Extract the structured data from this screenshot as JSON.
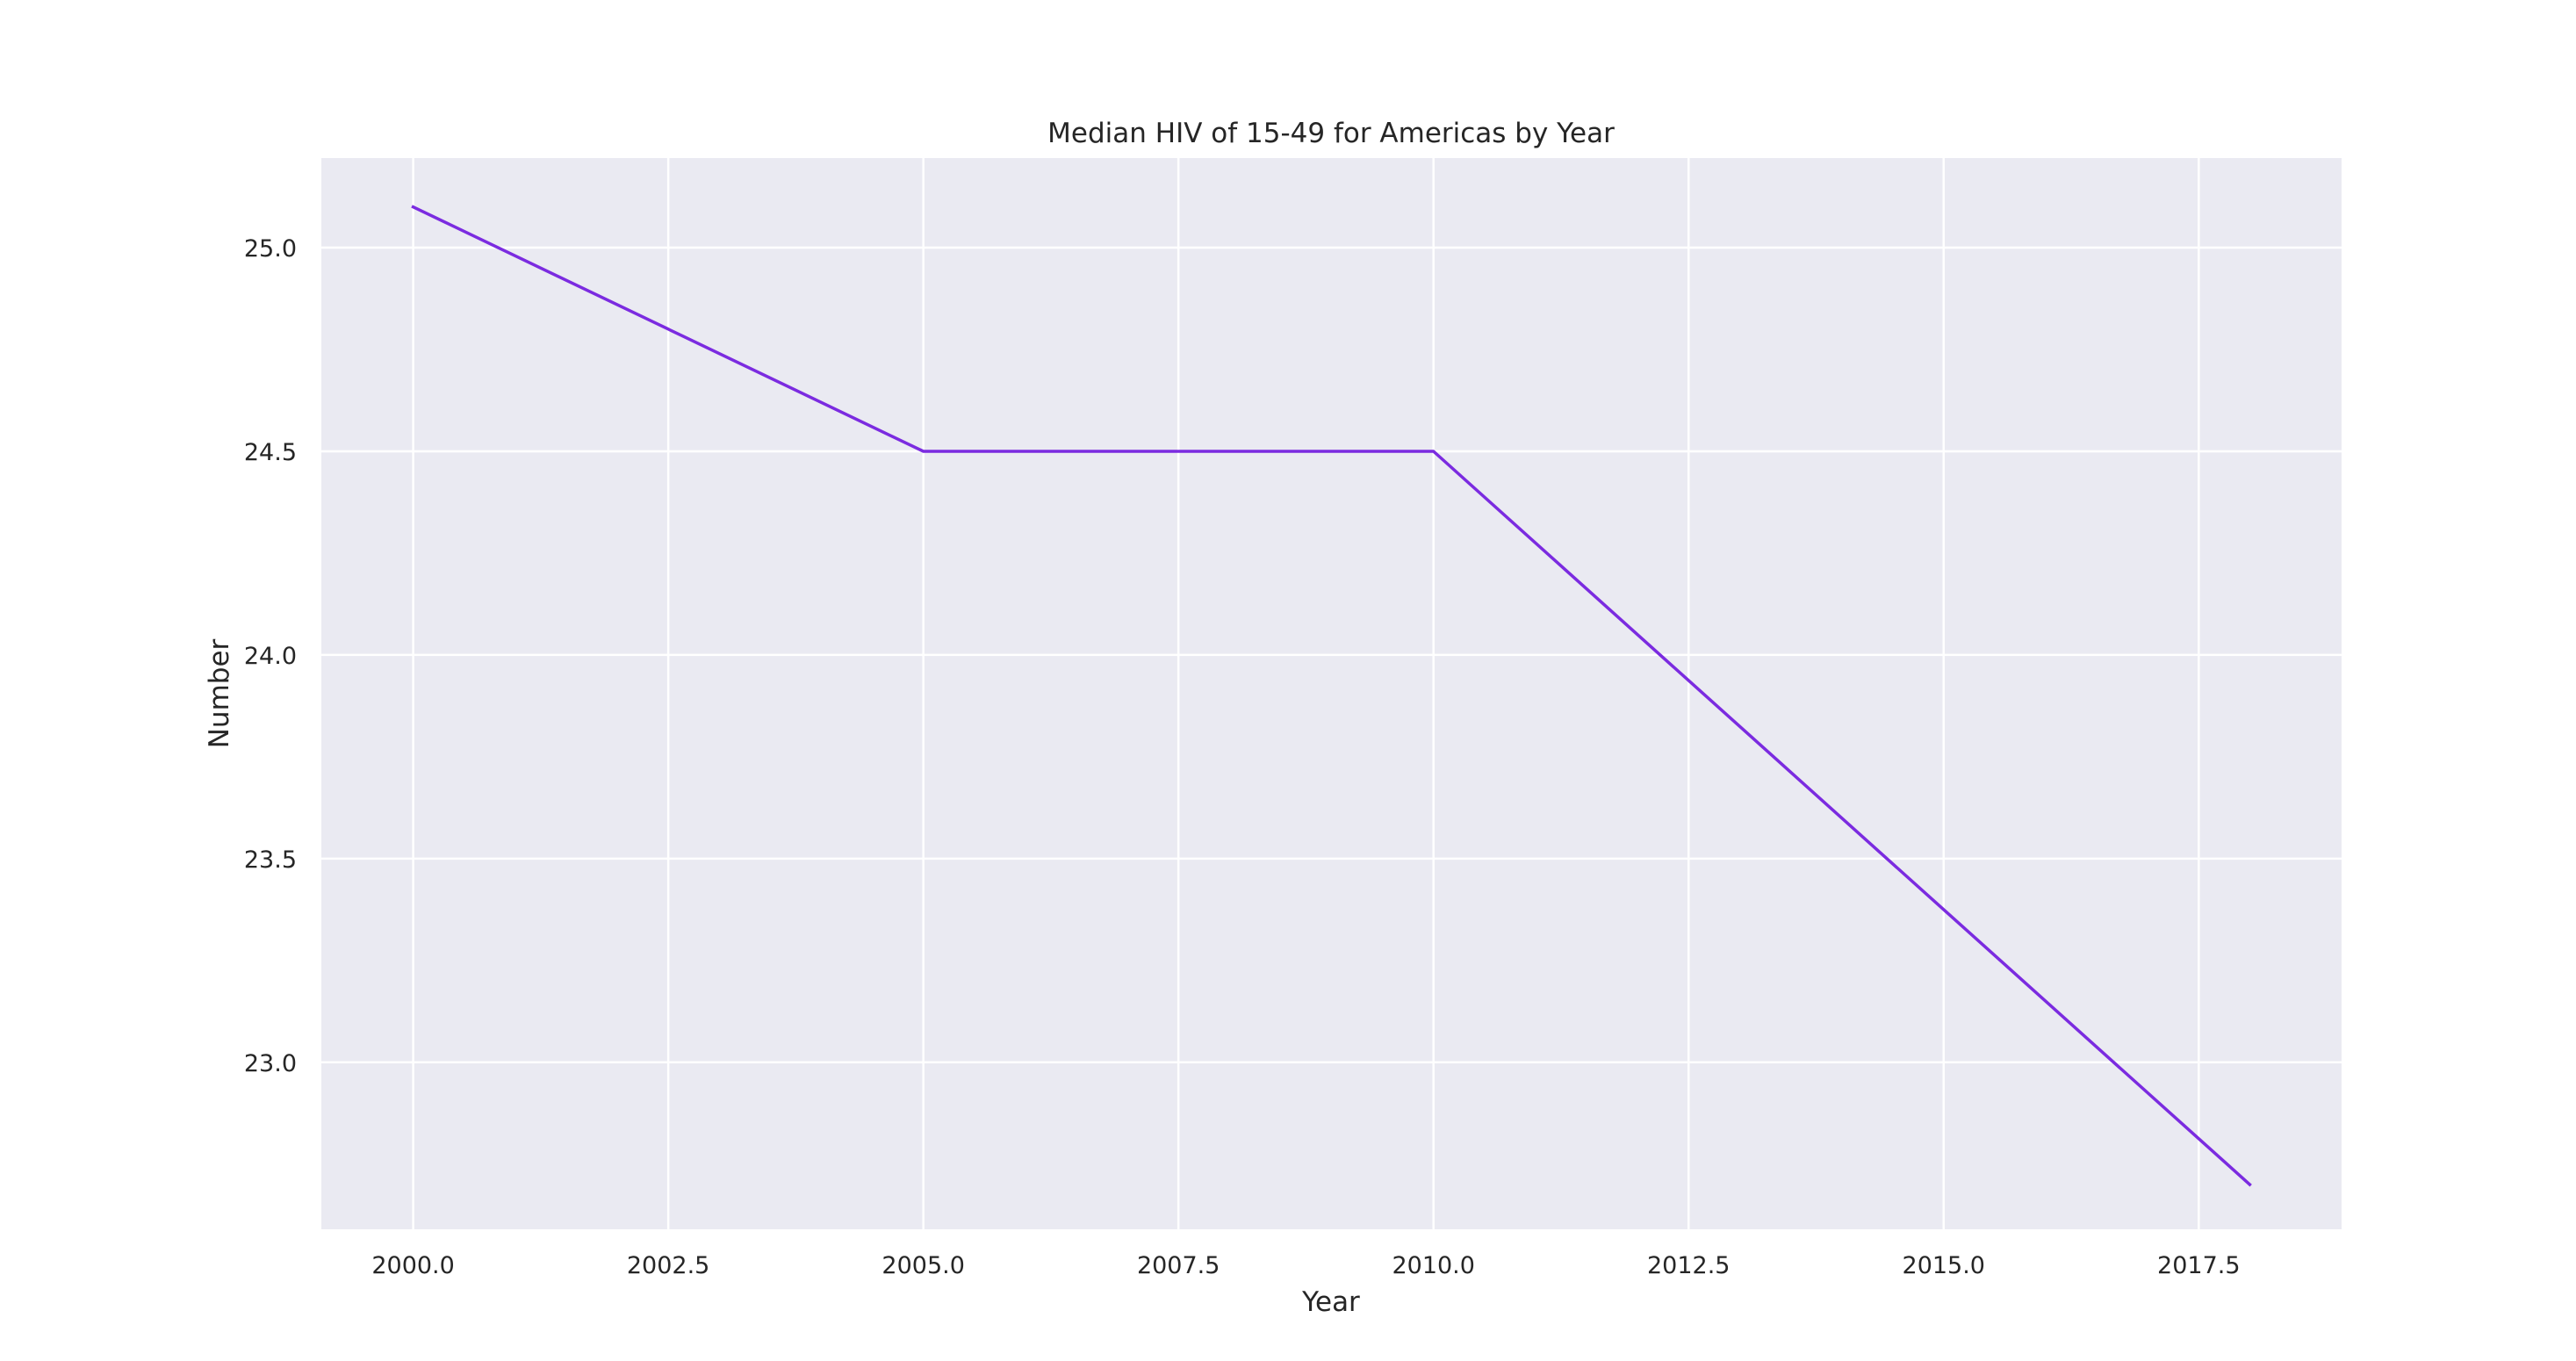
{
  "chart_data": {
    "type": "line",
    "title": "Median HIV of 15-49 for Americas by Year",
    "xlabel": "Year",
    "ylabel": "Number",
    "xlim": [
      1999.1,
      2018.9
    ],
    "ylim": [
      22.59,
      25.22
    ],
    "xticks": [
      2000.0,
      2002.5,
      2005.0,
      2007.5,
      2010.0,
      2012.5,
      2015.0,
      2017.5
    ],
    "xtick_labels": [
      "2000.0",
      "2002.5",
      "2005.0",
      "2007.5",
      "2010.0",
      "2012.5",
      "2015.0",
      "2017.5"
    ],
    "yticks": [
      23.0,
      23.5,
      24.0,
      24.5,
      25.0
    ],
    "ytick_labels": [
      "23.0",
      "23.5",
      "24.0",
      "24.5",
      "25.0"
    ],
    "grid": true,
    "series": [
      {
        "x": [
          2000,
          2005,
          2010,
          2018
        ],
        "y": [
          25.1,
          24.5,
          24.5,
          22.7
        ],
        "color": "#7b2be0"
      }
    ],
    "colors": {
      "plot_background": "#eaeaf2",
      "grid": "#ffffff",
      "text": "#262626"
    }
  }
}
